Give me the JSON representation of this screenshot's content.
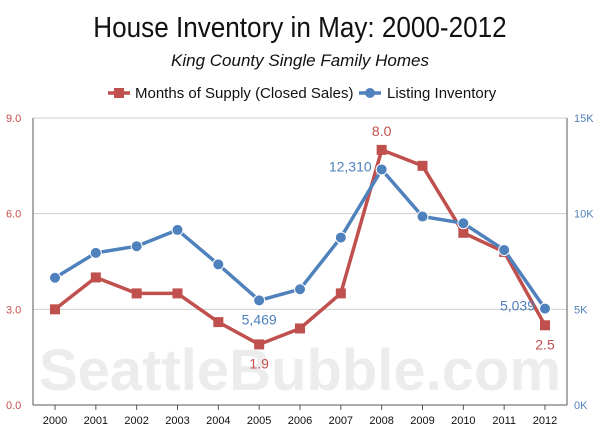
{
  "chart_data": {
    "type": "line",
    "title": "House Inventory in May: 2000-2012",
    "subtitle": "King County Single Family Homes",
    "watermark": "SeattleBubble.com",
    "categories": [
      "2000",
      "2001",
      "2002",
      "2003",
      "2004",
      "2005",
      "2006",
      "2007",
      "2008",
      "2009",
      "2010",
      "2011",
      "2012"
    ],
    "y_left": {
      "ylim": [
        0,
        9
      ],
      "ticks": [
        0,
        3,
        6,
        9
      ],
      "tick_labels": [
        "0.0",
        "3.0",
        "6.0",
        "9.0"
      ],
      "color": "#c0504d"
    },
    "y_right": {
      "ylim": [
        0,
        15000
      ],
      "ticks": [
        0,
        5000,
        10000,
        15000
      ],
      "tick_labels": [
        "0K",
        "5K",
        "10K",
        "15K"
      ],
      "color": "#4f81bd"
    },
    "grid": true,
    "legend_position": "top-center",
    "series": [
      {
        "name": "Months of Supply (Closed Sales)",
        "axis": "left",
        "color": "#c0504d",
        "marker": "square",
        "values": [
          3.0,
          4.0,
          3.5,
          3.5,
          2.6,
          1.9,
          2.4,
          3.5,
          8.0,
          7.5,
          5.4,
          4.8,
          2.5
        ],
        "labels": [
          {
            "index": 5,
            "text": "1.9",
            "position": "below"
          },
          {
            "index": 8,
            "text": "8.0",
            "position": "above"
          },
          {
            "index": 12,
            "text": "2.5",
            "position": "below"
          }
        ]
      },
      {
        "name": "Listing Inventory",
        "axis": "right",
        "color": "#4f81bd",
        "marker": "circle",
        "values": [
          6650,
          7950,
          8300,
          9150,
          7350,
          5469,
          6050,
          8750,
          12310,
          9850,
          9500,
          8100,
          5039
        ],
        "labels": [
          {
            "index": 5,
            "text": "5,469",
            "position": "below"
          },
          {
            "index": 8,
            "text": "12,310",
            "position": "left"
          },
          {
            "index": 12,
            "text": "5,039",
            "position": "left"
          }
        ]
      }
    ]
  }
}
